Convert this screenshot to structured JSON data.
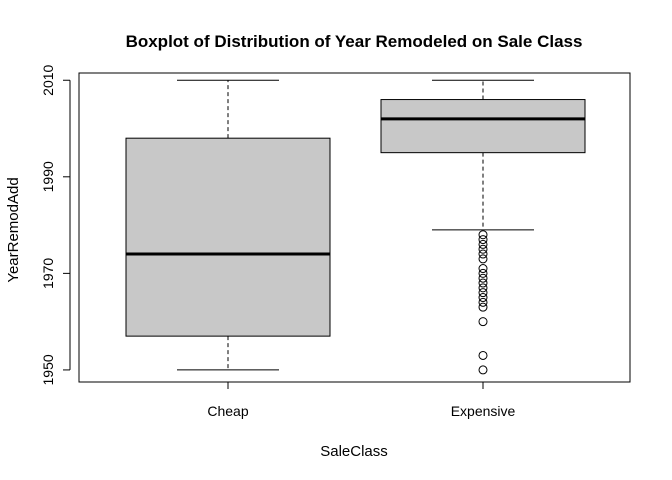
{
  "chart_data": {
    "type": "boxplot",
    "title": "Boxplot of Distribution of Year Remodeled on Sale Class",
    "xlabel": "SaleClass",
    "ylabel": "YearRemodAdd",
    "ylim": [
      1947.5,
      2011.5
    ],
    "yticks": [
      1950,
      1970,
      1990,
      2010
    ],
    "grid": false,
    "box_fill": "#c8c8c8",
    "categories": [
      "Cheap",
      "Expensive"
    ],
    "boxes": [
      {
        "category": "Cheap",
        "whisker_low": 1950,
        "q1": 1957,
        "median": 1974,
        "q3": 1998,
        "whisker_high": 2010,
        "outliers": []
      },
      {
        "category": "Expensive",
        "whisker_low": 1979,
        "q1": 1995,
        "median": 2002,
        "q3": 2006,
        "whisker_high": 2010,
        "outliers": [
          1978,
          1977,
          1976,
          1975,
          1974,
          1973,
          1971,
          1970,
          1969,
          1968,
          1967,
          1966,
          1965,
          1964,
          1963,
          1960,
          1953,
          1950
        ]
      }
    ]
  }
}
